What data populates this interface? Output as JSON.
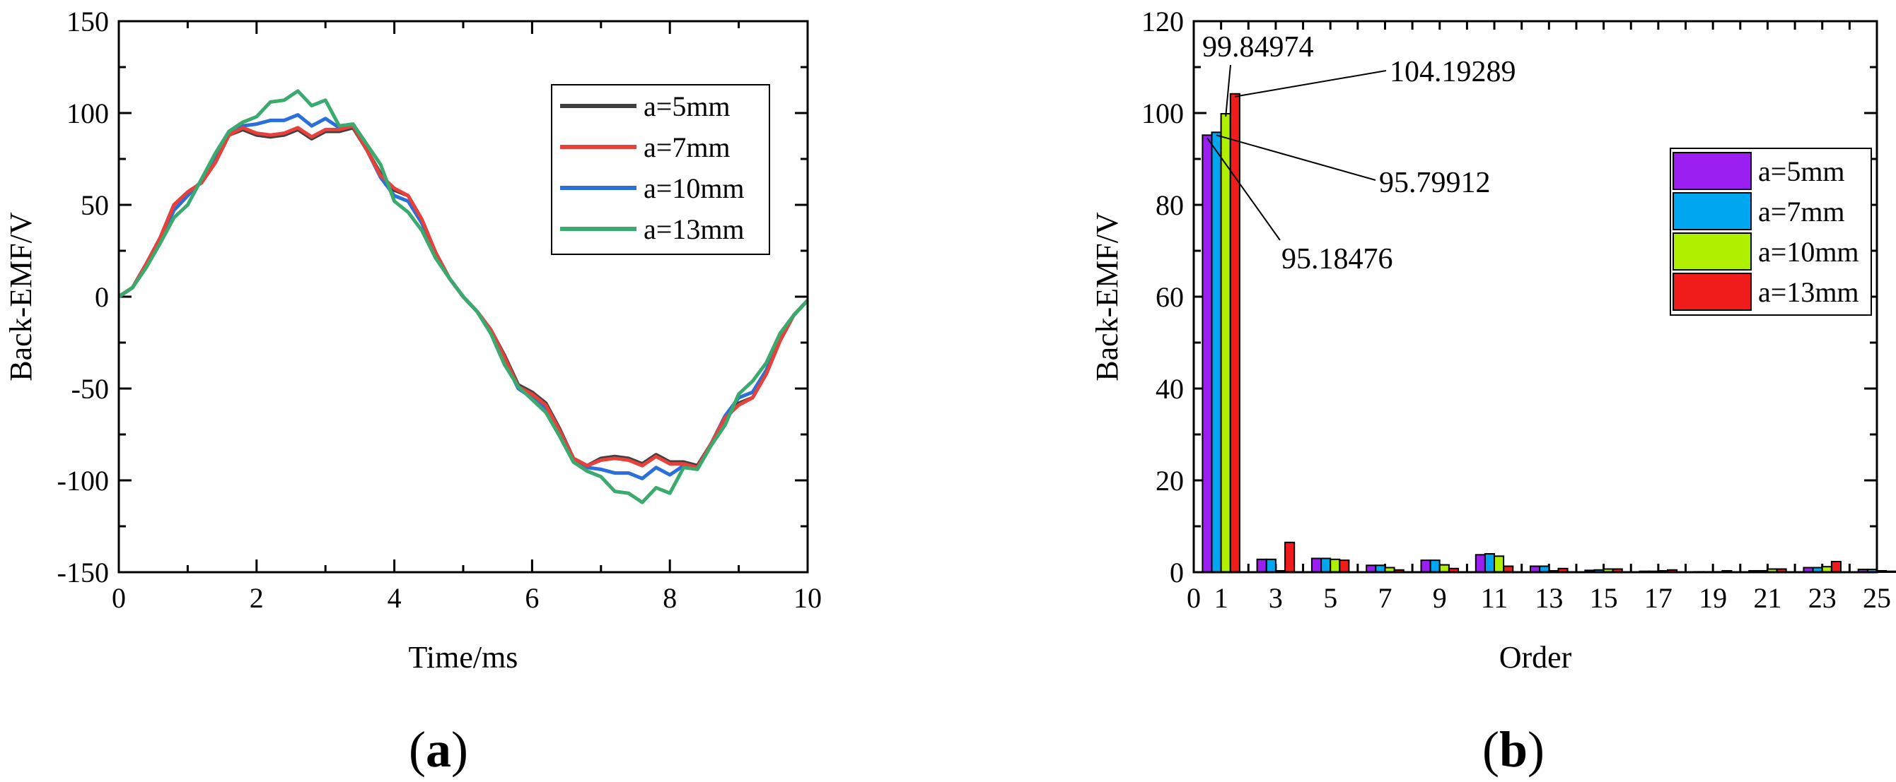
{
  "chart_data": [
    {
      "type": "line",
      "panel_label_left": "(",
      "panel_label_letter": "a",
      "panel_label_right": ")",
      "xlabel": "Time/ms",
      "ylabel": "Back-EMF/V",
      "xlim": [
        0,
        10
      ],
      "ylim": [
        -150,
        150
      ],
      "x_ticks": [
        0,
        2,
        4,
        6,
        8,
        10
      ],
      "x_tick_labels": [
        "0",
        "2",
        "4",
        "6",
        "8",
        "10"
      ],
      "y_ticks": [
        -150,
        -100,
        -50,
        0,
        50,
        100,
        150
      ],
      "y_tick_labels": [
        "-150",
        "-100",
        "-50",
        "0",
        "50",
        "100",
        "150"
      ],
      "legend_position": "top-right",
      "x": [
        0,
        0.2,
        0.4,
        0.6,
        0.8,
        1.0,
        1.2,
        1.4,
        1.6,
        1.8,
        2.0,
        2.2,
        2.4,
        2.6,
        2.8,
        3.0,
        3.2,
        3.4,
        3.6,
        3.8,
        4.0,
        4.2,
        4.4,
        4.6,
        4.8,
        5.0,
        5.2,
        5.4,
        5.6,
        5.8,
        6.0,
        6.2,
        6.4,
        6.6,
        6.8,
        7.0,
        7.2,
        7.4,
        7.6,
        7.8,
        8.0,
        8.2,
        8.4,
        8.6,
        8.8,
        9.0,
        9.2,
        9.4,
        9.6,
        9.8,
        10.0
      ],
      "series": [
        {
          "name": "a=5mm",
          "color": "#404040",
          "values": [
            0,
            5,
            18,
            32,
            50,
            57,
            62,
            73,
            88,
            91,
            88,
            87,
            88,
            91,
            86,
            90,
            90,
            92,
            80,
            67,
            58,
            55,
            42,
            24,
            10,
            0,
            -8,
            -18,
            -32,
            -48,
            -52,
            -58,
            -72,
            -88,
            -92,
            -88,
            -87,
            -88,
            -91,
            -86,
            -90,
            -90,
            -92,
            -80,
            -67,
            -58,
            -55,
            -42,
            -24,
            -10,
            -2
          ]
        },
        {
          "name": "a=7mm",
          "color": "#e8413c",
          "values": [
            0,
            5,
            18,
            32,
            50,
            57,
            62,
            73,
            88,
            92,
            89,
            88,
            89,
            92,
            87,
            91,
            91,
            93,
            80,
            66,
            59,
            55,
            42,
            24,
            10,
            0,
            -8,
            -18,
            -33,
            -49,
            -53,
            -59,
            -73,
            -88,
            -92,
            -89,
            -88,
            -89,
            -92,
            -87,
            -91,
            -91,
            -93,
            -80,
            -66,
            -59,
            -55,
            -42,
            -24,
            -10,
            -2
          ]
        },
        {
          "name": "a=10mm",
          "color": "#2a6fdb",
          "values": [
            0,
            5,
            17,
            31,
            47,
            55,
            63,
            75,
            90,
            93,
            94,
            96,
            96,
            99,
            93,
            97,
            92,
            93,
            80,
            65,
            55,
            52,
            40,
            22,
            10,
            0,
            -8,
            -19,
            -35,
            -50,
            -55,
            -61,
            -75,
            -89,
            -93,
            -94,
            -96,
            -96,
            -99,
            -93,
            -97,
            -92,
            -93,
            -80,
            -65,
            -55,
            -52,
            -40,
            -22,
            -10,
            -2
          ]
        },
        {
          "name": "a=13mm",
          "color": "#3aaa6e",
          "values": [
            0,
            5,
            16,
            29,
            43,
            50,
            64,
            78,
            90,
            95,
            98,
            106,
            107,
            112,
            104,
            107,
            93,
            94,
            83,
            72,
            52,
            46,
            36,
            21,
            10,
            0,
            -8,
            -20,
            -37,
            -49,
            -56,
            -63,
            -76,
            -90,
            -95,
            -98,
            -106,
            -107,
            -112,
            -104,
            -107,
            -93,
            -94,
            -81,
            -70,
            -53,
            -46,
            -36,
            -20,
            -10,
            -2
          ]
        }
      ]
    },
    {
      "type": "bar",
      "panel_label_left": "(",
      "panel_label_letter": "b",
      "panel_label_right": ")",
      "xlabel": "Order",
      "ylabel": "Back-EMF/V",
      "xlim": [
        0,
        25
      ],
      "ylim": [
        0,
        120
      ],
      "x_ticks": [
        0,
        1,
        3,
        5,
        7,
        9,
        11,
        13,
        15,
        17,
        19,
        21,
        23,
        25
      ],
      "x_tick_labels": [
        "0",
        "1",
        "3",
        "5",
        "7",
        "9",
        "11",
        "13",
        "15",
        "17",
        "19",
        "21",
        "23",
        "25"
      ],
      "y_ticks": [
        0,
        20,
        40,
        60,
        80,
        100,
        120
      ],
      "y_tick_labels": [
        "0",
        "20",
        "40",
        "60",
        "80",
        "100",
        "120"
      ],
      "legend_position": "top-right",
      "categories": [
        1,
        3,
        5,
        7,
        9,
        11,
        13,
        15,
        17,
        19,
        21,
        23,
        25
      ],
      "series": [
        {
          "name": "a=5mm",
          "color": "#9b1ff0",
          "values": [
            95.18,
            2.8,
            3.0,
            1.5,
            2.6,
            3.8,
            1.3,
            0.4,
            0.2,
            0.1,
            0.3,
            1.0,
            0.6
          ]
        },
        {
          "name": "a=7mm",
          "color": "#00a6f0",
          "values": [
            95.8,
            2.8,
            3.0,
            1.5,
            2.6,
            4.0,
            1.3,
            0.5,
            0.2,
            0.1,
            0.3,
            1.0,
            0.6
          ]
        },
        {
          "name": "a=10mm",
          "color": "#aef000",
          "values": [
            99.85,
            0.3,
            2.8,
            1.0,
            1.6,
            3.5,
            0.3,
            0.7,
            0.3,
            0.1,
            0.7,
            1.2,
            0.3
          ]
        },
        {
          "name": "a=13mm",
          "color": "#f01c1c",
          "values": [
            104.19,
            6.5,
            2.6,
            0.5,
            0.8,
            1.3,
            0.8,
            0.7,
            0.5,
            0.3,
            0.7,
            2.3,
            0.2
          ]
        }
      ],
      "annotations": [
        {
          "text": "99.84974",
          "series": 2,
          "category": 1
        },
        {
          "text": "104.19289",
          "series": 3,
          "category": 1
        },
        {
          "text": "95.79912",
          "series": 1,
          "category": 1
        },
        {
          "text": "95.18476",
          "series": 0,
          "category": 1
        }
      ]
    }
  ]
}
